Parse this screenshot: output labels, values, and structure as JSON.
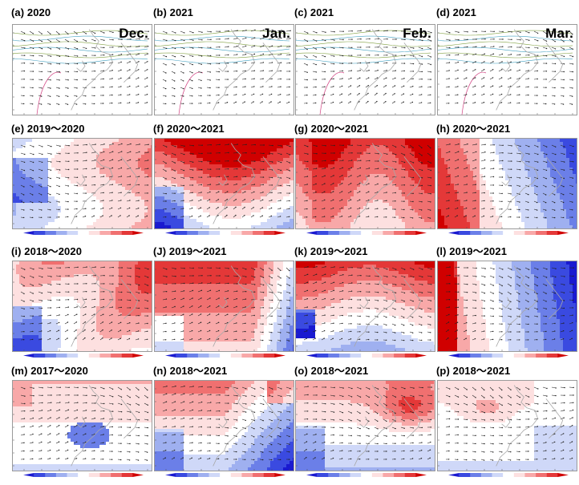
{
  "rows": [
    {
      "kind": "wind",
      "panels": [
        {
          "label": "(a) 2020",
          "month": "Dec."
        },
        {
          "label": "(b) 2021",
          "month": "Jan."
        },
        {
          "label": "(c) 2021",
          "month": "Feb."
        },
        {
          "label": "(d) 2021",
          "month": "Mar."
        }
      ]
    },
    {
      "kind": "anomaly",
      "panels": [
        {
          "label": "(e) 2019～2020",
          "pattern": "east_warm"
        },
        {
          "label": "(f) 2020～2021",
          "pattern": "north_hot"
        },
        {
          "label": "(g) 2020～2021",
          "pattern": "all_hot"
        },
        {
          "label": "(h) 2020～2021",
          "pattern": "east_cold"
        }
      ]
    },
    {
      "kind": "anomaly",
      "panels": [
        {
          "label": "(i) 2018～2020",
          "pattern": "mild_warm"
        },
        {
          "label": "(J) 2019～2021",
          "pattern": "west_hot"
        },
        {
          "label": "(k) 2019～2021",
          "pattern": "north_band"
        },
        {
          "label": "(l) 2019～2021",
          "pattern": "east_cold_strong"
        }
      ]
    },
    {
      "kind": "anomaly",
      "panels": [
        {
          "label": "(m) 2017～2020",
          "pattern": "weak_mix"
        },
        {
          "label": "(n) 2018～2021",
          "pattern": "dipole"
        },
        {
          "label": "(o) 2018～2021",
          "pattern": "ne_hot"
        },
        {
          "label": "(p) 2018～2021",
          "pattern": "pale"
        }
      ]
    }
  ],
  "colorbar": {
    "colors": [
      "#1a1ad0",
      "#3a4ae0",
      "#6b7fe8",
      "#9fb0f0",
      "#cfd8f8",
      "#ffffff",
      "#fde0e0",
      "#f8a8a8",
      "#f07070",
      "#e43838",
      "#d00000"
    ]
  },
  "colors": {
    "coast": "#a8a8a8",
    "arrow": "#222222",
    "contour_a": "#d04080",
    "contour_b": "#40a0c0"
  }
}
